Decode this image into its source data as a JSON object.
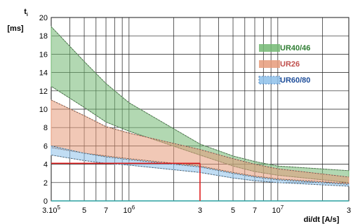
{
  "chart_data": {
    "type": "area",
    "y_label": {
      "main": "t",
      "sub": "i",
      "unit": "[ms]"
    },
    "x_label": "di/dt  [A/s]",
    "y_lim": [
      0,
      20
    ],
    "y_ticks": [
      0,
      2,
      4,
      6,
      8,
      10,
      12,
      14,
      16,
      18,
      20
    ],
    "x_lim": [
      300000,
      30000000
    ],
    "x_scale": "log",
    "grid": true,
    "x_ticks": [
      {
        "value": 300000,
        "base": "3.10",
        "exp": "5"
      },
      {
        "value": 500000,
        "base": "5",
        "exp": ""
      },
      {
        "value": 700000,
        "base": "7",
        "exp": ""
      },
      {
        "value": 1000000,
        "base": "10",
        "exp": "6"
      },
      {
        "value": 3000000,
        "base": "3",
        "exp": ""
      },
      {
        "value": 5000000,
        "base": "5",
        "exp": ""
      },
      {
        "value": 7000000,
        "base": "7",
        "exp": ""
      },
      {
        "value": 10000000,
        "base": "10",
        "exp": "7"
      },
      {
        "value": 30000000,
        "base": "3",
        "exp": ""
      }
    ],
    "legend_position": "right",
    "series": [
      {
        "name": "UR40/46",
        "color": "#73b873",
        "text_color": "#2e7d32",
        "x": [
          300000,
          500000,
          700000,
          1000000,
          3000000,
          5000000,
          7000000,
          10000000,
          30000000
        ],
        "upper": [
          19,
          15.2,
          12.8,
          10.7,
          6.2,
          4.9,
          4.3,
          3.8,
          3.3
        ],
        "lower": [
          12.5,
          10.2,
          8.6,
          7.6,
          5.0,
          3.8,
          3.2,
          2.8,
          2.0
        ]
      },
      {
        "name": "UR26",
        "color": "#e69b7a",
        "text_color": "#c0504d",
        "x": [
          300000,
          500000,
          700000,
          1000000,
          3000000,
          5000000,
          7000000,
          10000000,
          30000000
        ],
        "upper": [
          11,
          9.3,
          8.1,
          7.4,
          5.6,
          4.6,
          4.0,
          3.5,
          2.6
        ],
        "lower": [
          5.8,
          5.2,
          4.9,
          4.6,
          3.8,
          3.1,
          2.7,
          2.4,
          1.9
        ]
      },
      {
        "name": "UR60/80",
        "color": "#8ec1ea",
        "text_color": "#1f4e9a",
        "x": [
          300000,
          500000,
          700000,
          1000000,
          3000000,
          5000000,
          7000000,
          10000000,
          30000000
        ],
        "upper": [
          6.0,
          5.2,
          4.8,
          4.5,
          3.7,
          3.0,
          2.6,
          2.3,
          1.8
        ],
        "lower": [
          5.0,
          4.4,
          4.1,
          3.9,
          3.1,
          2.5,
          2.2,
          2.0,
          1.6
        ]
      }
    ],
    "annotation": {
      "x": 3000000,
      "y": 4.1,
      "color": "#e02020"
    }
  }
}
